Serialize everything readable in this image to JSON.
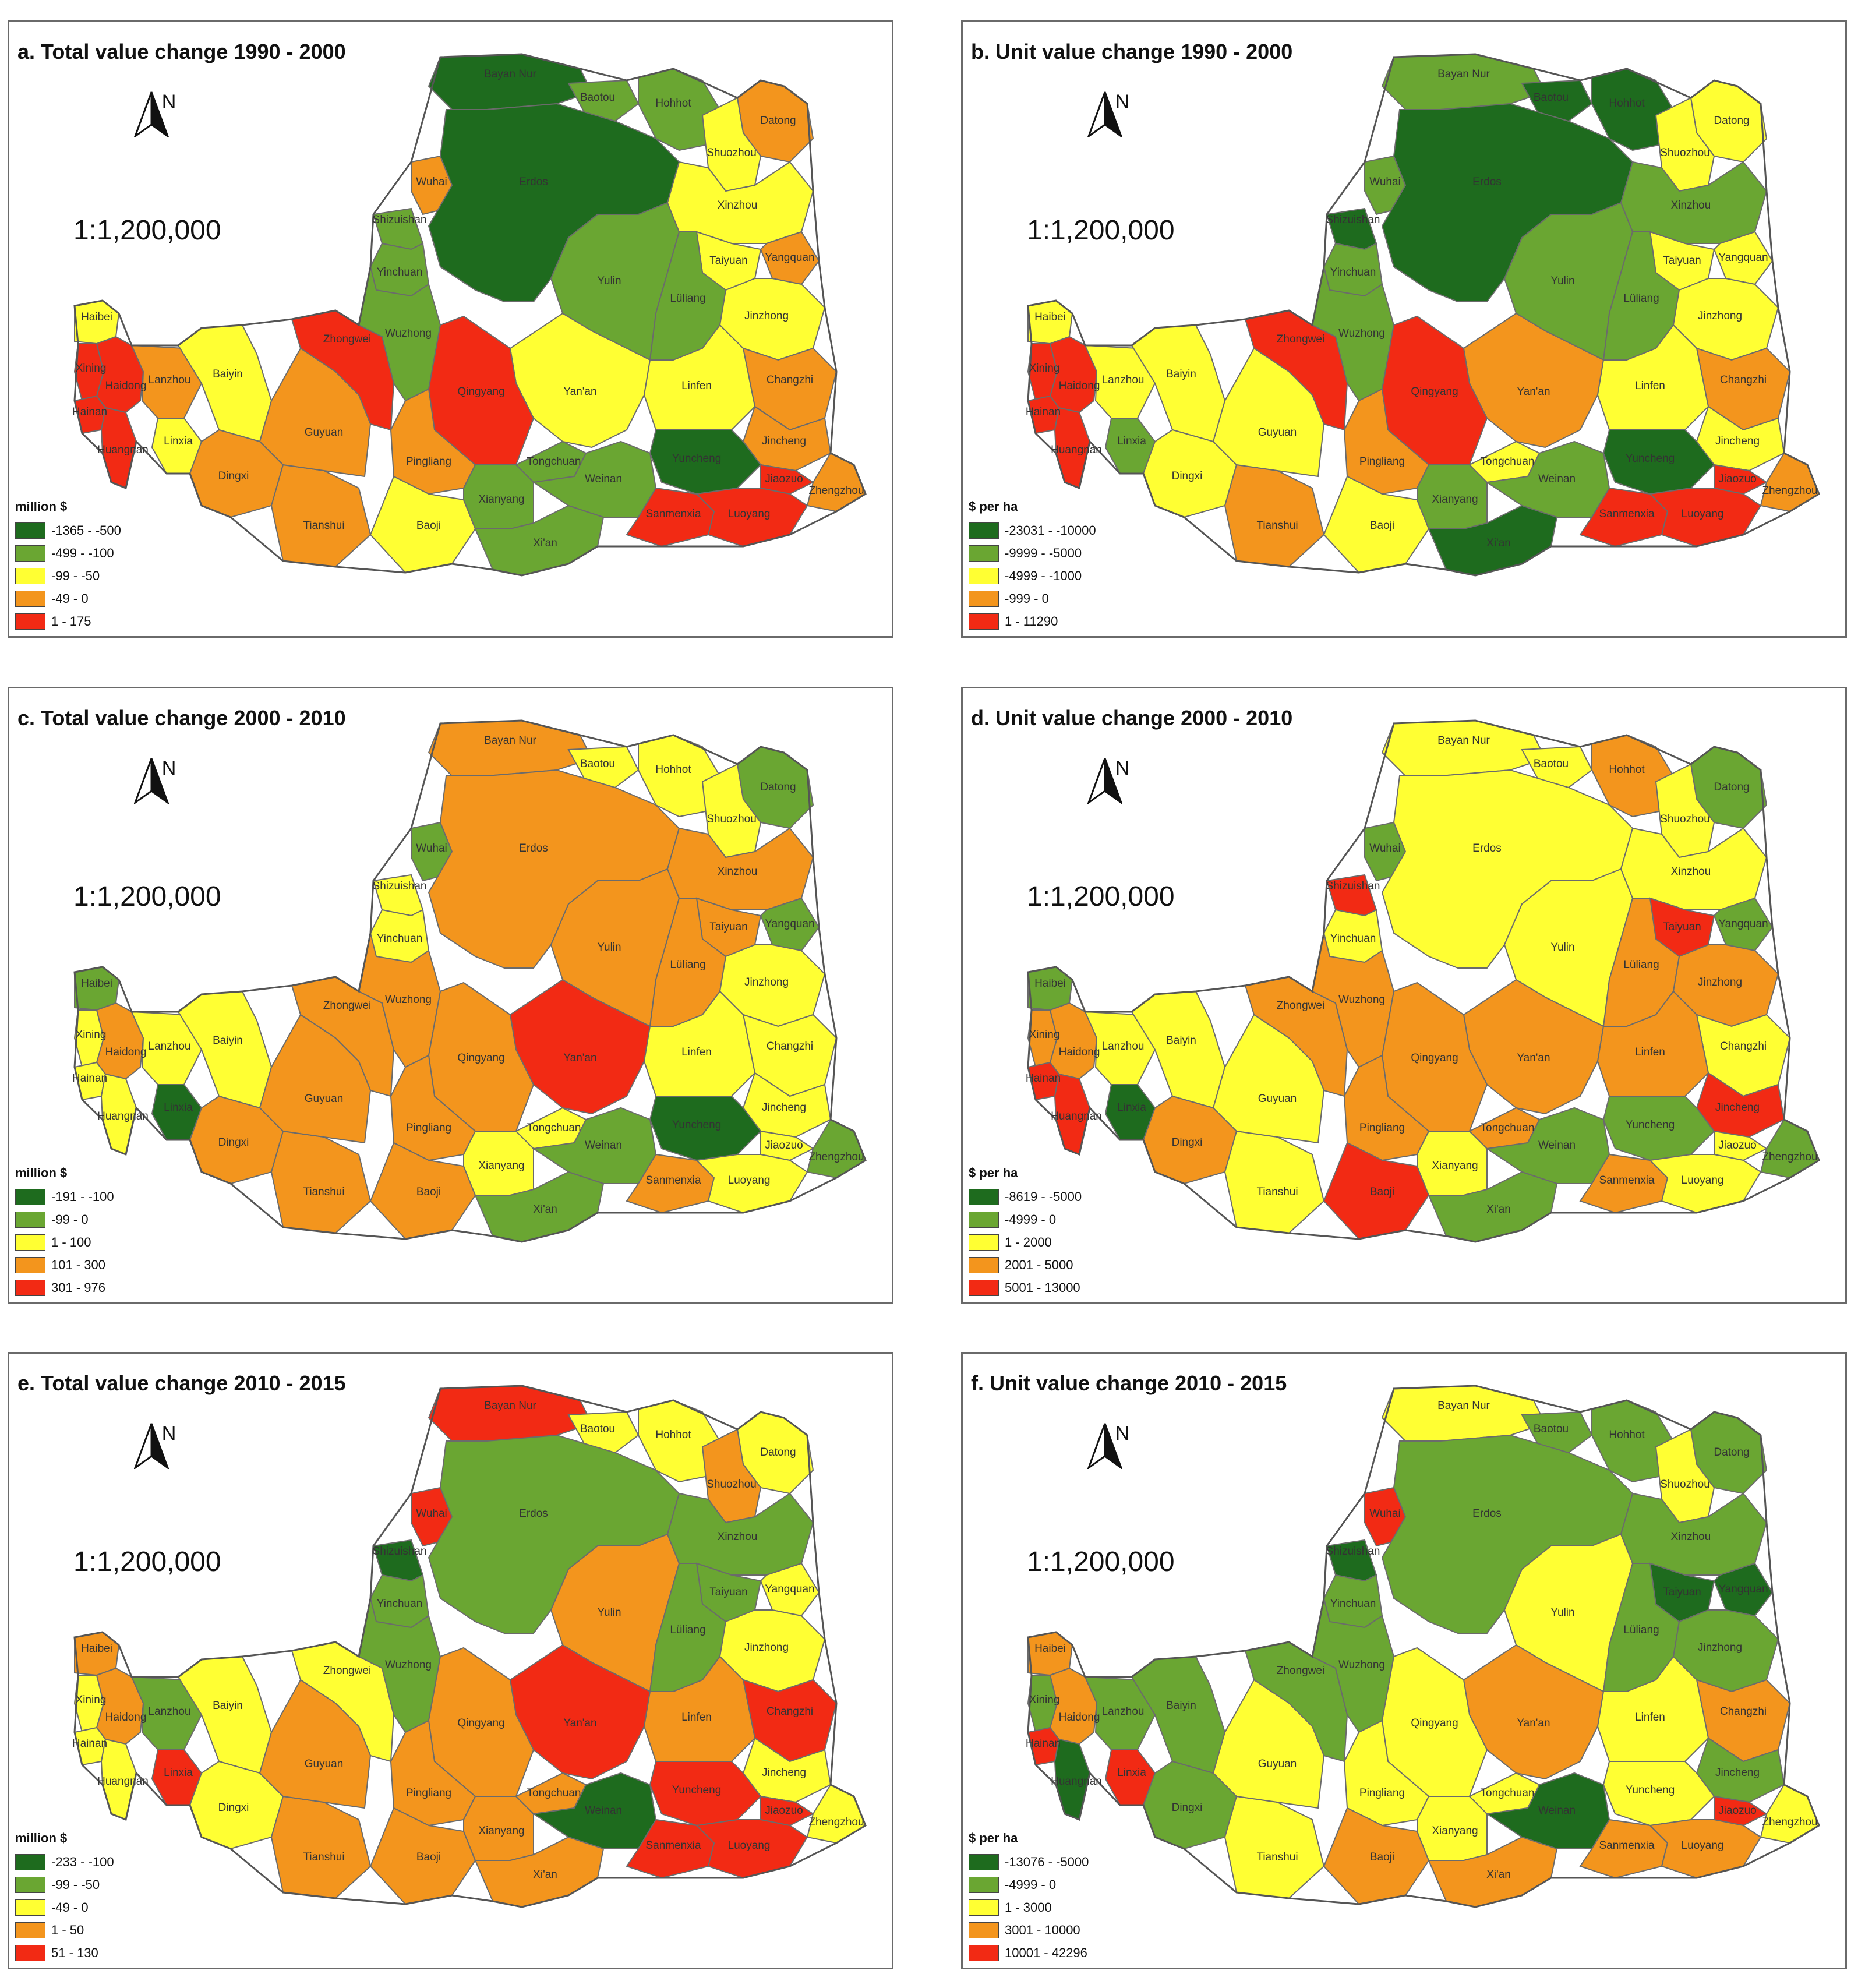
{
  "scale_text": "1:1,200,000",
  "north_label": "N",
  "palette": {
    "c1": "#1e6b1e",
    "c2": "#6aa632",
    "c3": "#ffff33",
    "c4": "#f3951d",
    "c5": "#f22a14"
  },
  "panels": [
    {
      "title": "a. Total value change 1990 - 2000",
      "unit": "million $",
      "legend": [
        {
          "label": "-1365 - -500",
          "color": "#1e6b1e"
        },
        {
          "label": "-499 - -100",
          "color": "#6aa632"
        },
        {
          "label": "-99 - -50",
          "color": "#ffff33"
        },
        {
          "label": "-49 - 0",
          "color": "#f3951d"
        },
        {
          "label": "1 - 175",
          "color": "#f22a14"
        }
      ],
      "classes": {
        "Haibei": 3,
        "Xining": 5,
        "Haidong": 5,
        "Hainan": 5,
        "Huangnan": 5,
        "Lanzhou": 4,
        "Linxia": 3,
        "Baiyin": 3,
        "Dingxi": 4,
        "Tianshui": 4,
        "Zhongwei": 5,
        "Guyuan": 4,
        "Wuzhong": 2,
        "Shizuishan": 2,
        "Yinchuan": 2,
        "Wuhai": 4,
        "Bayan Nur": 1,
        "Baotou": 2,
        "Hohhot": 2,
        "Erdos": 1,
        "Yulin": 2,
        "Yan'an": 3,
        "Qingyang": 5,
        "Pingliang": 4,
        "Baoji": 3,
        "Xianyang": 2,
        "Tongchuan": 2,
        "Weinan": 2,
        "Xi'an": 2,
        "Datong": 4,
        "Shuozhou": 3,
        "Xinzhou": 3,
        "Taiyuan": 3,
        "Yangquan": 4,
        "Luliang": 2,
        "Jinzhong": 3,
        "Changzhi": 4,
        "Linfen": 3,
        "Jincheng": 4,
        "Yuncheng": 1,
        "Jiaozuo": 5,
        "Zhengzhou": 4,
        "Sanmenxia": 5,
        "Luoyang": 5
      }
    },
    {
      "title": "b. Unit value change 1990 - 2000",
      "unit": "$ per ha",
      "legend": [
        {
          "label": "-23031 - -10000",
          "color": "#1e6b1e"
        },
        {
          "label": "-9999 - -5000",
          "color": "#6aa632"
        },
        {
          "label": "-4999 - -1000",
          "color": "#ffff33"
        },
        {
          "label": "-999 - 0",
          "color": "#f3951d"
        },
        {
          "label": "1 - 11290",
          "color": "#f22a14"
        }
      ],
      "classes": {
        "Haibei": 3,
        "Xining": 5,
        "Haidong": 5,
        "Hainan": 5,
        "Huangnan": 5,
        "Lanzhou": 3,
        "Linxia": 2,
        "Baiyin": 3,
        "Dingxi": 3,
        "Tianshui": 4,
        "Zhongwei": 5,
        "Guyuan": 3,
        "Wuzhong": 2,
        "Shizuishan": 1,
        "Yinchuan": 2,
        "Wuhai": 2,
        "Bayan Nur": 2,
        "Baotou": 1,
        "Hohhot": 1,
        "Erdos": 1,
        "Yulin": 2,
        "Yan'an": 4,
        "Qingyang": 5,
        "Pingliang": 4,
        "Baoji": 3,
        "Xianyang": 2,
        "Tongchuan": 3,
        "Weinan": 2,
        "Xi'an": 1,
        "Datong": 3,
        "Shuozhou": 3,
        "Xinzhou": 2,
        "Taiyuan": 3,
        "Yangquan": 3,
        "Luliang": 2,
        "Jinzhong": 3,
        "Changzhi": 4,
        "Linfen": 3,
        "Jincheng": 3,
        "Yuncheng": 1,
        "Jiaozuo": 5,
        "Zhengzhou": 4,
        "Sanmenxia": 5,
        "Luoyang": 5
      }
    },
    {
      "title": "c. Total value change 2000 - 2010",
      "unit": "million $",
      "legend": [
        {
          "label": "-191 - -100",
          "color": "#1e6b1e"
        },
        {
          "label": "-99 - 0",
          "color": "#6aa632"
        },
        {
          "label": "1 - 100",
          "color": "#ffff33"
        },
        {
          "label": "101 - 300",
          "color": "#f3951d"
        },
        {
          "label": "301 - 976",
          "color": "#f22a14"
        }
      ],
      "classes": {
        "Haibei": 2,
        "Xining": 3,
        "Haidong": 4,
        "Hainan": 3,
        "Huangnan": 3,
        "Lanzhou": 3,
        "Linxia": 1,
        "Baiyin": 3,
        "Dingxi": 4,
        "Tianshui": 4,
        "Zhongwei": 4,
        "Guyuan": 4,
        "Wuzhong": 4,
        "Shizuishan": 3,
        "Yinchuan": 3,
        "Wuhai": 2,
        "Bayan Nur": 4,
        "Baotou": 3,
        "Hohhot": 3,
        "Erdos": 4,
        "Yulin": 4,
        "Yan'an": 5,
        "Qingyang": 4,
        "Pingliang": 4,
        "Baoji": 4,
        "Xianyang": 3,
        "Tongchuan": 3,
        "Weinan": 2,
        "Xi'an": 2,
        "Datong": 2,
        "Shuozhou": 3,
        "Xinzhou": 4,
        "Taiyuan": 4,
        "Yangquan": 2,
        "Luliang": 4,
        "Jinzhong": 3,
        "Changzhi": 3,
        "Linfen": 3,
        "Jincheng": 3,
        "Yuncheng": 1,
        "Jiaozuo": 3,
        "Zhengzhou": 2,
        "Sanmenxia": 4,
        "Luoyang": 3
      }
    },
    {
      "title": "d. Unit value change 2000 - 2010",
      "unit": "$ per ha",
      "legend": [
        {
          "label": "-8619 - -5000",
          "color": "#1e6b1e"
        },
        {
          "label": "-4999 - 0",
          "color": "#6aa632"
        },
        {
          "label": "1 - 2000",
          "color": "#ffff33"
        },
        {
          "label": "2001 - 5000",
          "color": "#f3951d"
        },
        {
          "label": "5001 - 13000",
          "color": "#f22a14"
        }
      ],
      "classes": {
        "Haibei": 2,
        "Xining": 4,
        "Haidong": 4,
        "Hainan": 5,
        "Huangnan": 5,
        "Lanzhou": 3,
        "Linxia": 1,
        "Baiyin": 3,
        "Dingxi": 4,
        "Tianshui": 3,
        "Zhongwei": 4,
        "Guyuan": 3,
        "Wuzhong": 4,
        "Shizuishan": 5,
        "Yinchuan": 3,
        "Wuhai": 2,
        "Bayan Nur": 3,
        "Baotou": 3,
        "Hohhot": 4,
        "Erdos": 3,
        "Yulin": 3,
        "Yan'an": 4,
        "Qingyang": 4,
        "Pingliang": 4,
        "Baoji": 5,
        "Xianyang": 3,
        "Tongchuan": 4,
        "Weinan": 2,
        "Xi'an": 2,
        "Datong": 2,
        "Shuozhou": 3,
        "Xinzhou": 3,
        "Taiyuan": 5,
        "Yangquan": 2,
        "Luliang": 4,
        "Jinzhong": 4,
        "Changzhi": 3,
        "Linfen": 4,
        "Jincheng": 5,
        "Yuncheng": 2,
        "Jiaozuo": 3,
        "Zhengzhou": 2,
        "Sanmenxia": 4,
        "Luoyang": 3
      }
    },
    {
      "title": "e. Total value change 2010 - 2015",
      "unit": "million $",
      "legend": [
        {
          "label": "-233 - -100",
          "color": "#1e6b1e"
        },
        {
          "label": "-99 - -50",
          "color": "#6aa632"
        },
        {
          "label": "-49 - 0",
          "color": "#ffff33"
        },
        {
          "label": "1 - 50",
          "color": "#f3951d"
        },
        {
          "label": "51 - 130",
          "color": "#f22a14"
        }
      ],
      "classes": {
        "Haibei": 4,
        "Xining": 3,
        "Haidong": 4,
        "Hainan": 3,
        "Huangnan": 3,
        "Lanzhou": 2,
        "Linxia": 5,
        "Baiyin": 3,
        "Dingxi": 3,
        "Tianshui": 4,
        "Zhongwei": 3,
        "Guyuan": 4,
        "Wuzhong": 2,
        "Shizuishan": 1,
        "Yinchuan": 2,
        "Wuhai": 5,
        "Bayan Nur": 5,
        "Baotou": 3,
        "Hohhot": 3,
        "Erdos": 2,
        "Yulin": 4,
        "Yan'an": 5,
        "Qingyang": 4,
        "Pingliang": 4,
        "Baoji": 4,
        "Xianyang": 4,
        "Tongchuan": 4,
        "Weinan": 1,
        "Xi'an": 4,
        "Datong": 3,
        "Shuozhou": 4,
        "Xinzhou": 2,
        "Taiyuan": 2,
        "Yangquan": 3,
        "Luliang": 2,
        "Jinzhong": 3,
        "Changzhi": 5,
        "Linfen": 4,
        "Jincheng": 3,
        "Yuncheng": 5,
        "Jiaozuo": 5,
        "Zhengzhou": 3,
        "Sanmenxia": 5,
        "Luoyang": 5
      }
    },
    {
      "title": "f. Unit value change 2010 - 2015",
      "unit": "$ per ha",
      "legend": [
        {
          "label": "-13076 - -5000",
          "color": "#1e6b1e"
        },
        {
          "label": "-4999 - 0",
          "color": "#6aa632"
        },
        {
          "label": "1 - 3000",
          "color": "#ffff33"
        },
        {
          "label": "3001 - 10000",
          "color": "#f3951d"
        },
        {
          "label": "10001 - 42296",
          "color": "#f22a14"
        }
      ],
      "classes": {
        "Haibei": 4,
        "Xining": 2,
        "Haidong": 4,
        "Hainan": 5,
        "Huangnan": 1,
        "Lanzhou": 2,
        "Linxia": 5,
        "Baiyin": 2,
        "Dingxi": 2,
        "Tianshui": 3,
        "Zhongwei": 2,
        "Guyuan": 3,
        "Wuzhong": 2,
        "Shizuishan": 1,
        "Yinchuan": 2,
        "Wuhai": 5,
        "Bayan Nur": 3,
        "Baotou": 2,
        "Hohhot": 2,
        "Erdos": 2,
        "Yulin": 3,
        "Yan'an": 4,
        "Qingyang": 3,
        "Pingliang": 3,
        "Baoji": 4,
        "Xianyang": 3,
        "Tongchuan": 3,
        "Weinan": 1,
        "Xi'an": 4,
        "Datong": 2,
        "Shuozhou": 3,
        "Xinzhou": 2,
        "Taiyuan": 1,
        "Yangquan": 1,
        "Luliang": 2,
        "Jinzhong": 2,
        "Changzhi": 4,
        "Linfen": 3,
        "Jincheng": 2,
        "Yuncheng": 3,
        "Jiaozuo": 5,
        "Zhengzhou": 3,
        "Sanmenxia": 4,
        "Luoyang": 4
      }
    }
  ]
}
